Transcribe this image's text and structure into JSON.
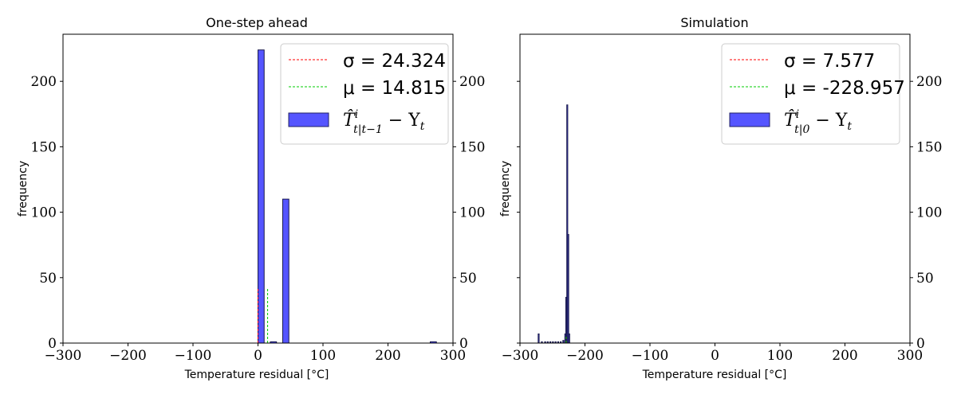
{
  "chart_data": [
    {
      "type": "histogram",
      "title": "One-step ahead",
      "xlabel": "Temperature residual [°C]",
      "ylabel": "frequency",
      "xlim": [
        -300,
        300
      ],
      "ylim": [
        0,
        236
      ],
      "xticks": [
        "−300",
        "−200",
        "−100",
        "0",
        "100",
        "200",
        "300"
      ],
      "yticks": [
        "0",
        "50",
        "100",
        "150",
        "200"
      ],
      "bar_color": "#5555ff",
      "bins": [
        {
          "x0": 0,
          "x1": 9.5,
          "count": 224
        },
        {
          "x0": 19,
          "x1": 28.5,
          "count": 1
        },
        {
          "x0": 38,
          "x1": 47.5,
          "count": 110
        },
        {
          "x0": 265,
          "x1": 274.5,
          "count": 1
        }
      ],
      "vlines": [
        {
          "name": "sigma",
          "x": 0,
          "y": 42,
          "color": "#ff0000"
        },
        {
          "name": "mu",
          "x": 14.815,
          "y": 42,
          "color": "#00cc00"
        }
      ],
      "legend": {
        "position": "top-right",
        "sigma_text": "σ = 24.324",
        "mu_text": "μ = 14.815",
        "hist_main": "T̂",
        "hist_sup": "i",
        "hist_sub": "t|t−1",
        "hist_tail": " − Y",
        "hist_tail_sub": "t"
      }
    },
    {
      "type": "histogram",
      "title": "Simulation",
      "xlabel": "Temperature residual [°C]",
      "ylabel": "frequency",
      "xlim": [
        -300,
        300
      ],
      "ylim": [
        0,
        236
      ],
      "xticks": [
        "−300",
        "−200",
        "−100",
        "0",
        "100",
        "200",
        "300"
      ],
      "yticks": [
        "0",
        "50",
        "100",
        "150",
        "200"
      ],
      "bar_color": "#5555ff",
      "bins": [
        {
          "x0": -272,
          "x1": -270.5,
          "count": 7
        },
        {
          "x0": -267,
          "x1": -265.5,
          "count": 1
        },
        {
          "x0": -262,
          "x1": -260.5,
          "count": 1
        },
        {
          "x0": -258,
          "x1": -256.5,
          "count": 1
        },
        {
          "x0": -254,
          "x1": -252.5,
          "count": 1
        },
        {
          "x0": -250,
          "x1": -248.5,
          "count": 1
        },
        {
          "x0": -246,
          "x1": -244.5,
          "count": 1
        },
        {
          "x0": -242,
          "x1": -240.5,
          "count": 1
        },
        {
          "x0": -238,
          "x1": -236.5,
          "count": 1
        },
        {
          "x0": -234,
          "x1": -232.5,
          "count": 2
        },
        {
          "x0": -231,
          "x1": -229.5,
          "count": 7
        },
        {
          "x0": -229.5,
          "x1": -228,
          "count": 35
        },
        {
          "x0": -228,
          "x1": -226.5,
          "count": 182
        },
        {
          "x0": -226.5,
          "x1": -225,
          "count": 83
        },
        {
          "x0": -225,
          "x1": -223.5,
          "count": 7
        }
      ],
      "vlines": [
        {
          "name": "sigma",
          "x": -228.957,
          "y": 5,
          "color": "#ff0000"
        },
        {
          "name": "mu",
          "x": -228.957,
          "y": 5,
          "color": "#00cc00"
        }
      ],
      "legend": {
        "position": "top-right",
        "sigma_text": "σ = 7.577",
        "mu_text": "μ = -228.957",
        "hist_main": "T̂",
        "hist_sup": "i",
        "hist_sub": "t|0",
        "hist_tail": " − Y",
        "hist_tail_sub": "t"
      }
    }
  ]
}
